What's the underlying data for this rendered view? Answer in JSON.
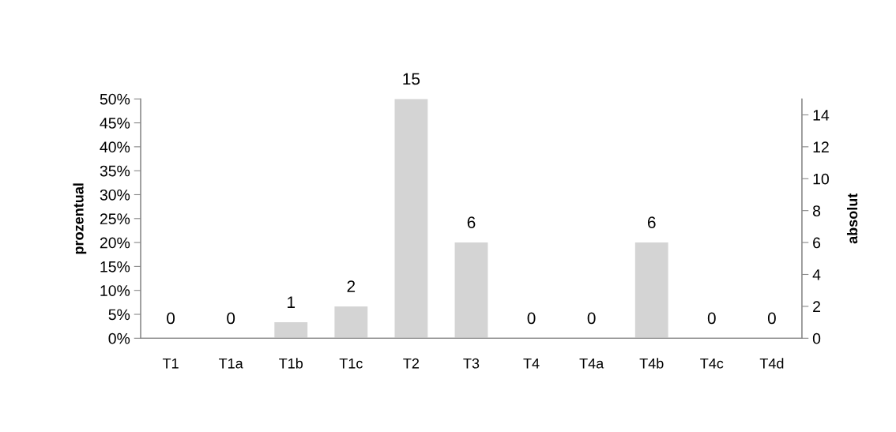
{
  "chart_data": {
    "type": "bar",
    "categories": [
      "T1",
      "T1a",
      "T1b",
      "T1c",
      "T2",
      "T3",
      "T4",
      "T4a",
      "T4b",
      "T4c",
      "T4d"
    ],
    "series": [
      {
        "color": "#d4d4d4",
        "axis": "y2",
        "values": [
          0,
          0,
          1,
          2,
          15,
          6,
          0,
          0,
          6,
          0,
          0
        ]
      }
    ],
    "ylabel": "prozentual",
    "y2label": "absolut",
    "ylim": [
      0,
      50
    ],
    "yticks": [
      {
        "value": 0,
        "label": "0%"
      },
      {
        "value": 5,
        "label": "5%"
      },
      {
        "value": 10,
        "label": "10%"
      },
      {
        "value": 15,
        "label": "15%"
      },
      {
        "value": 20,
        "label": "20%"
      },
      {
        "value": 25,
        "label": "25%"
      },
      {
        "value": 30,
        "label": "30%"
      },
      {
        "value": 35,
        "label": "35%"
      },
      {
        "value": 40,
        "label": "40%"
      },
      {
        "value": 45,
        "label": "45%"
      },
      {
        "value": 50,
        "label": "50%"
      }
    ],
    "y2lim": [
      0,
      15
    ],
    "y2ticks": [
      0,
      2,
      4,
      6,
      8,
      10,
      12,
      14
    ],
    "data_labels": true,
    "grid": false,
    "legend": false
  }
}
